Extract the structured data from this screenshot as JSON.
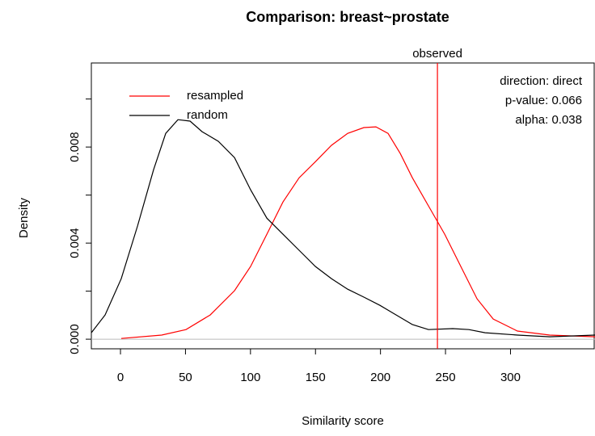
{
  "chart_data": {
    "type": "line",
    "title": "Comparison: breast~prostate",
    "xlabel": "Similarity score",
    "ylabel": "Density",
    "xlim": [
      -22.4,
      365
    ],
    "ylim": [
      -0.0004,
      0.0115
    ],
    "xticks": [
      0,
      50,
      100,
      150,
      200,
      250,
      300
    ],
    "yticks": [
      {
        "value": 0,
        "label": "0.000"
      },
      {
        "value": 0.002,
        "label": null
      },
      {
        "value": 0.004,
        "label": "0.004"
      },
      {
        "value": 0.006,
        "label": null
      },
      {
        "value": 0.008,
        "label": "0.008"
      },
      {
        "value": 0.01,
        "label": null
      }
    ],
    "baseline": {
      "value": 0,
      "color": "#bbbbbb"
    },
    "observed": {
      "label": "observed",
      "value": 243.8,
      "color": "#ff0000"
    },
    "annotations": [
      "direction: direct",
      "p-value: 0.066",
      "alpha: 0.038"
    ],
    "legend": "top-left",
    "series": [
      {
        "name": "resampled",
        "color": "#ff0000",
        "x": [
          0.6,
          31.7,
          50.4,
          69,
          87.7,
          100.1,
          112.6,
          125,
          137.4,
          149.9,
          162.3,
          174.8,
          187.2,
          196.5,
          205.8,
          215.2,
          224.5,
          236.9,
          249.4,
          261.8,
          274.3,
          286.7,
          305.3,
          330.2,
          365
        ],
        "values": [
          3e-05,
          0.00017,
          0.0004,
          0.00101,
          0.00202,
          0.00303,
          0.00437,
          0.00571,
          0.00672,
          0.00739,
          0.00807,
          0.00857,
          0.00881,
          0.00884,
          0.00857,
          0.00773,
          0.00672,
          0.00555,
          0.00437,
          0.00303,
          0.00168,
          0.00084,
          0.00034,
          0.00017,
          0.0001
        ]
      },
      {
        "name": "random",
        "color": "#000000",
        "x": [
          -22.4,
          -11.8,
          0.6,
          13.1,
          25.5,
          34.8,
          44.2,
          53.5,
          62.8,
          75.2,
          87.7,
          100.1,
          112.6,
          125,
          137.4,
          149.9,
          162.3,
          174.8,
          187.2,
          199.6,
          212.1,
          224.5,
          236.9,
          255.6,
          268,
          280.5,
          305.3,
          330.2,
          365
        ],
        "values": [
          0.00027,
          0.00101,
          0.00252,
          0.00471,
          0.00706,
          0.00857,
          0.00914,
          0.00908,
          0.00864,
          0.00824,
          0.00756,
          0.00622,
          0.00504,
          0.00437,
          0.0037,
          0.00303,
          0.00252,
          0.00208,
          0.00175,
          0.00141,
          0.00101,
          0.00061,
          0.0004,
          0.00044,
          0.0004,
          0.00027,
          0.00017,
          0.0001,
          0.00017
        ]
      }
    ]
  }
}
